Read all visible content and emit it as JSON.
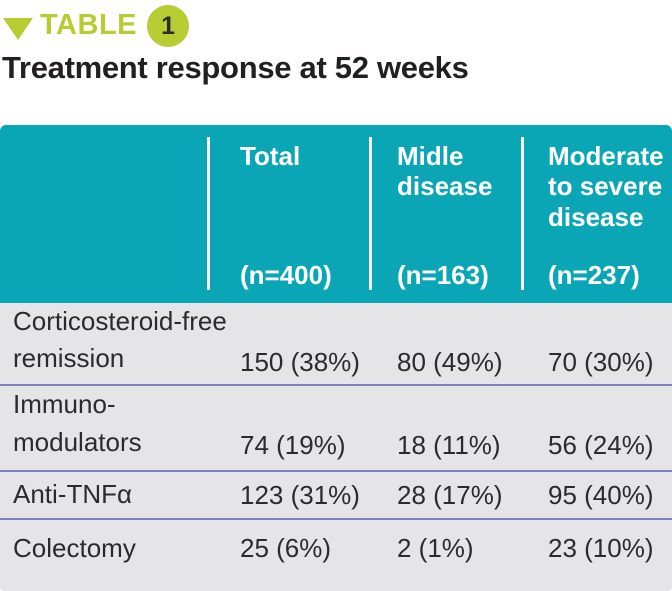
{
  "colors": {
    "teal_header": "#0aa6b6",
    "lime_accent": "#b5cd33",
    "row_background": "#e5e5e7",
    "row_divider": "#7d7fbe",
    "header_text": "#ffffff",
    "body_text": "#2b2b2d",
    "title_text": "#231f20"
  },
  "chart_data": {
    "type": "table",
    "kicker": {
      "label": "TABLE",
      "number": "1"
    },
    "title": "Treatment response at 52 weeks",
    "header": {
      "cols": [
        {
          "title": "Total",
          "n": "(n=400)"
        },
        {
          "title": "Midle\ndisease",
          "n": "(n=163)"
        },
        {
          "title": "Moderate\nto severe\ndisease",
          "n": "(n=237)"
        }
      ]
    },
    "rows": [
      {
        "label": "Corticosteroid-free\nremission",
        "values": [
          "150 (38%)",
          "80 (49%)",
          "70 (30%)"
        ]
      },
      {
        "label": "Immuno-\nmodulators",
        "values": [
          "74 (19%)",
          "18 (11%)",
          "56 (24%)"
        ]
      },
      {
        "label": "Anti-TNFα",
        "values": [
          "123 (31%)",
          "28 (17%)",
          "95 (40%)"
        ]
      },
      {
        "label": "Colectomy",
        "values": [
          "25 (6%)",
          "2 (1%)",
          "23 (10%)"
        ]
      }
    ]
  }
}
